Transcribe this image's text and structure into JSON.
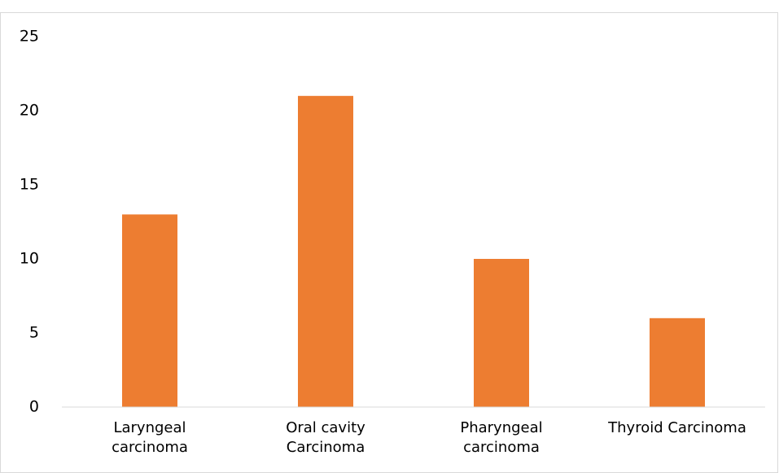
{
  "chart_data": {
    "type": "bar",
    "categories": [
      "Laryngeal\ncarcinoma",
      "Oral cavity\nCarcinoma",
      "Pharyngeal\ncarcinoma",
      "Thyroid Carcinoma"
    ],
    "values": [
      13,
      21,
      10,
      6
    ],
    "color": "#ed7d31",
    "ylim": [
      0,
      25
    ],
    "yticks": [
      0,
      5,
      10,
      15,
      20,
      25
    ],
    "grid": false
  }
}
